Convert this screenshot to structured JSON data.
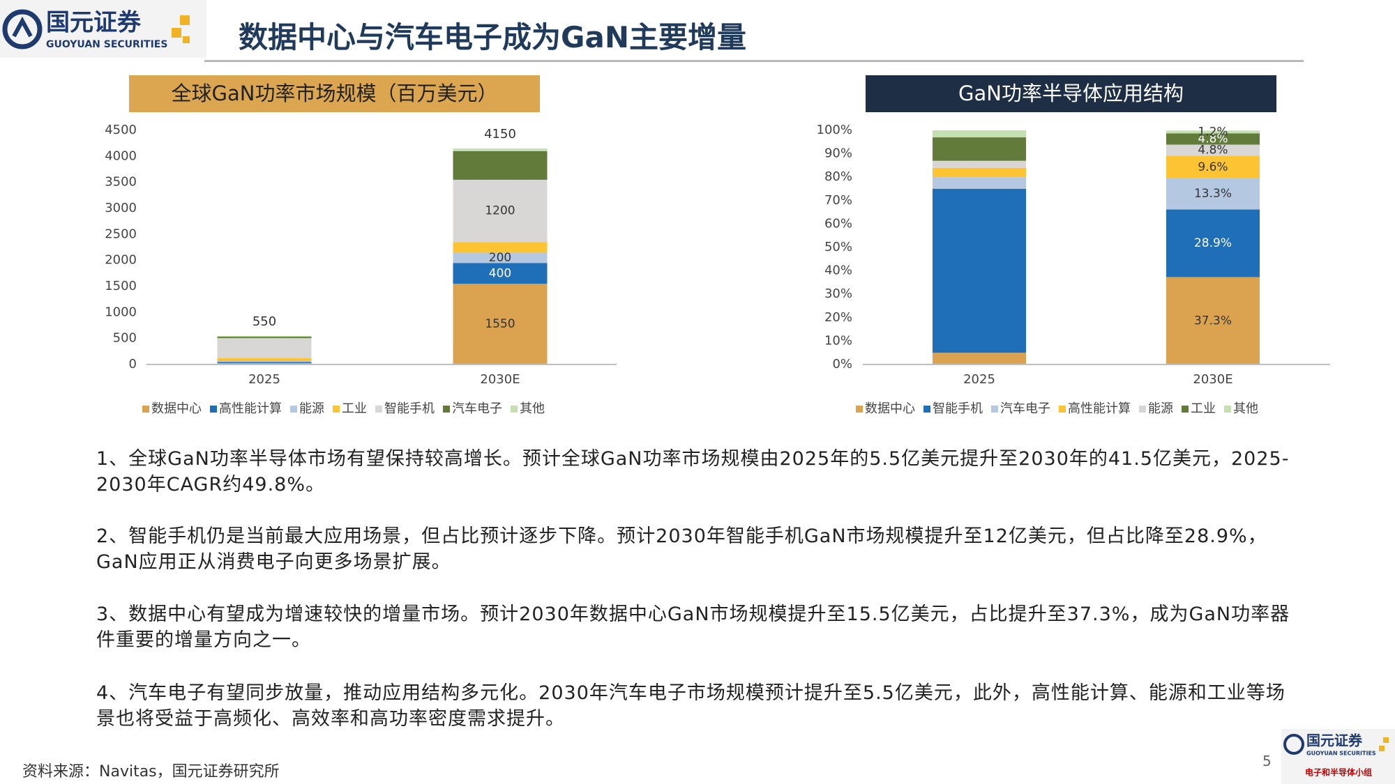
{
  "header": {
    "logo": {
      "name": "国元证券",
      "sub": "GUOYUAN SECURITIES"
    },
    "title": "数据中心与汽车电子成为GaN主要增量"
  },
  "chart_data": [
    {
      "type": "bar",
      "stacked": true,
      "title": "全球GaN功率市场规模（百万美元）",
      "title_color": "#dba64f",
      "categories": [
        "2025",
        "2030E"
      ],
      "series": [
        {
          "name": "数据中心",
          "color": "#dba250",
          "values": [
            28,
            1550
          ],
          "value_labels": [
            null,
            "1550"
          ]
        },
        {
          "name": "高性能计算",
          "color": "#1f6fb8",
          "values": [
            22,
            400
          ],
          "value_labels": [
            null,
            "400"
          ]
        },
        {
          "name": "能源",
          "color": "#b5c8e2",
          "values": [
            16,
            200
          ],
          "value_labels": [
            null,
            "200"
          ]
        },
        {
          "name": "工业",
          "color": "#fcc433",
          "values": [
            55,
            200
          ]
        },
        {
          "name": "智能手机",
          "color": "#d9d6d6",
          "values": [
            385,
            1200
          ],
          "value_labels": [
            null,
            "1200"
          ]
        },
        {
          "name": "汽车电子",
          "color": "#627a3a",
          "values": [
            28,
            550
          ]
        },
        {
          "name": "其他",
          "color": "#c4dfb0",
          "values": [
            16,
            50
          ]
        }
      ],
      "totals": [
        550,
        4150
      ],
      "ylim": [
        0,
        4500
      ],
      "yticks": [
        0,
        500,
        1000,
        1500,
        2000,
        2500,
        3000,
        3500,
        4000,
        4500
      ],
      "grid": false,
      "legend": "bottom"
    },
    {
      "type": "bar",
      "stacked": true,
      "title": "GaN功率半导体应用结构",
      "title_color": "#1e2f45",
      "categories": [
        "2025",
        "2030E"
      ],
      "series": [
        {
          "name": "数据中心",
          "color": "#dba250",
          "values": [
            5,
            37.3
          ],
          "value_labels": [
            null,
            "37.3%"
          ]
        },
        {
          "name": "智能手机",
          "color": "#1f6fb8",
          "values": [
            70,
            28.9
          ],
          "value_labels": [
            null,
            "28.9%"
          ]
        },
        {
          "name": "汽车电子",
          "color": "#b5c8e2",
          "values": [
            5,
            13.3
          ],
          "value_labels": [
            null,
            "13.3%"
          ]
        },
        {
          "name": "高性能计算",
          "color": "#fcc433",
          "values": [
            4,
            9.6
          ],
          "value_labels": [
            null,
            "9.6%"
          ]
        },
        {
          "name": "能源",
          "color": "#d9d6d6",
          "values": [
            3,
            4.8
          ],
          "value_labels": [
            null,
            "4.8%"
          ]
        },
        {
          "name": "工业",
          "color": "#627a3a",
          "values": [
            10,
            4.8
          ],
          "value_labels": [
            null,
            "4.8%"
          ]
        },
        {
          "name": "其他",
          "color": "#c4dfb0",
          "values": [
            3,
            1.2
          ],
          "value_labels": [
            null,
            "1.2%"
          ]
        }
      ],
      "ylim": [
        0,
        100
      ],
      "yticks": [
        {
          "value": 0,
          "label": "0%"
        },
        {
          "value": 10,
          "label": "10%"
        },
        {
          "value": 20,
          "label": "20%"
        },
        {
          "value": 30,
          "label": "30%"
        },
        {
          "value": 40,
          "label": "40%"
        },
        {
          "value": 50,
          "label": "50%"
        },
        {
          "value": 60,
          "label": "60%"
        },
        {
          "value": 70,
          "label": "70%"
        },
        {
          "value": 80,
          "label": "80%"
        },
        {
          "value": 90,
          "label": "90%"
        },
        {
          "value": 100,
          "label": "100%"
        }
      ],
      "grid": false,
      "legend": "bottom"
    }
  ],
  "paragraphs": [
    "1、全球GaN功率半导体市场有望保持较高增长。预计全球GaN功率市场规模由2025年的5.5亿美元提升至2030年的41.5亿美元，2025-2030年CAGR约49.8%。",
    "2、智能手机仍是当前最大应用场景，但占比预计逐步下降。预计2030年智能手机GaN市场规模提升至12亿美元，但占比降至28.9%，GaN应用正从消费电子向更多场景扩展。",
    "3、数据中心有望成为增速较快的增量市场。预计2030年数据中心GaN市场规模提升至15.5亿美元，占比提升至37.3%，成为GaN功率器件重要的增量方向之一。",
    "4、汽车电子有望同步放量，推动应用结构多元化。2030年汽车电子市场规模预计提升至5.5亿美元，此外，高性能计算、能源和工业等场景也将受益于高频化、高效率和高功率密度需求提升。"
  ],
  "footer": {
    "source": "资料来源：Navitas，国元证券研究所",
    "page": "5",
    "logo": {
      "name": "国元证券",
      "sub": "GUOYUAN SECURITIES",
      "group": "电子和半导体小组"
    }
  }
}
